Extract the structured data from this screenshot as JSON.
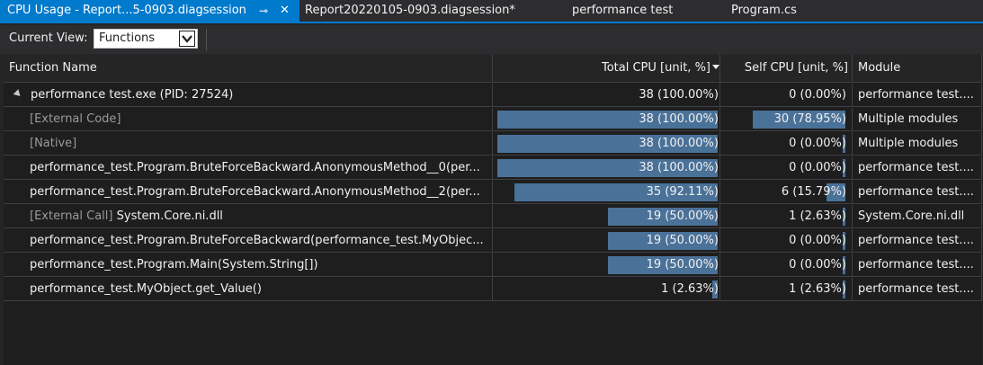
{
  "tabs": [
    {
      "label": "CPU Usage - Report...5-0903.diagsession",
      "pin": "⊸",
      "close": "✕",
      "active": true
    },
    {
      "label": "Report20220105-0903.diagsession*"
    },
    {
      "label": "performance test"
    },
    {
      "label": "Program.cs"
    }
  ],
  "toolbar": {
    "current_view_label": "Current View:",
    "current_view_value": "Functions"
  },
  "columns": {
    "name": "Function Name",
    "total": "Total CPU [unit, %]",
    "self": "Self CPU [unit, %]",
    "module": "Module"
  },
  "rows": [
    {
      "name": "performance test.exe (PID: 27524)",
      "total": "38 (100.00%)",
      "total_pct": 100,
      "total_bar": false,
      "self": "0 (0.00%)",
      "self_pct": 0,
      "self_bar": false,
      "module": "performance test....",
      "root": true
    },
    {
      "name": "[External Code]",
      "total": "38 (100.00%)",
      "total_pct": 100,
      "total_bar": true,
      "self": "30 (78.95%)",
      "self_pct": 78.95,
      "self_bar": true,
      "module": "Multiple modules",
      "dim": true
    },
    {
      "name": "[Native]",
      "total": "38 (100.00%)",
      "total_pct": 100,
      "total_bar": true,
      "self": "0 (0.00%)",
      "self_pct": 0,
      "self_bar": true,
      "module": "Multiple modules",
      "dim": true
    },
    {
      "name": "performance_test.Program.BruteForceBackward.AnonymousMethod__0(per...",
      "total": "38 (100.00%)",
      "total_pct": 100,
      "total_bar": true,
      "self": "0 (0.00%)",
      "self_pct": 0,
      "self_bar": true,
      "module": "performance test...."
    },
    {
      "name": "performance_test.Program.BruteForceBackward.AnonymousMethod__2(per...",
      "total": "35 (92.11%)",
      "total_pct": 92.11,
      "total_bar": true,
      "self": "6 (15.79%)",
      "self_pct": 15.79,
      "self_bar": true,
      "module": "performance test...."
    },
    {
      "name_prefix": "[External Call]",
      "name": "System.Core.ni.dll",
      "total": "19 (50.00%)",
      "total_pct": 50,
      "total_bar": true,
      "self": "1 (2.63%)",
      "self_pct": 2.63,
      "self_bar": true,
      "module": "System.Core.ni.dll"
    },
    {
      "name": "performance_test.Program.BruteForceBackward(performance_test.MyObjec...",
      "total": "19 (50.00%)",
      "total_pct": 50,
      "total_bar": true,
      "self": "0 (0.00%)",
      "self_pct": 0,
      "self_bar": true,
      "module": "performance test...."
    },
    {
      "name": "performance_test.Program.Main(System.String[])",
      "total": "19 (50.00%)",
      "total_pct": 50,
      "total_bar": true,
      "self": "0 (0.00%)",
      "self_pct": 0,
      "self_bar": true,
      "module": "performance test...."
    },
    {
      "name": "performance_test.MyObject.get_Value()",
      "total": "1 (2.63%)",
      "total_pct": 2.63,
      "total_bar": true,
      "self": "1 (2.63%)",
      "self_pct": 2.63,
      "self_bar": true,
      "module": "performance test...."
    }
  ],
  "colors": {
    "accent": "#007acc",
    "bar": "#4a7198",
    "background": "#1e1e1e"
  }
}
